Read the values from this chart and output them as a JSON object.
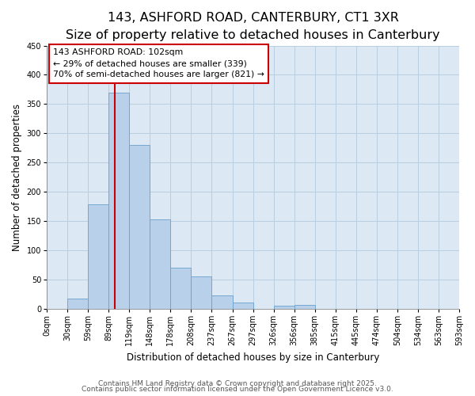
{
  "title": "143, ASHFORD ROAD, CANTERBURY, CT1 3XR",
  "subtitle": "Size of property relative to detached houses in Canterbury",
  "xlabel": "Distribution of detached houses by size in Canterbury",
  "ylabel": "Number of detached properties",
  "bar_values": [
    0,
    18,
    178,
    370,
    280,
    153,
    70,
    55,
    23,
    10,
    0,
    5,
    7,
    0,
    0,
    0,
    0,
    0,
    0,
    0
  ],
  "bar_labels": [
    "0sqm",
    "30sqm",
    "59sqm",
    "89sqm",
    "119sqm",
    "148sqm",
    "178sqm",
    "208sqm",
    "237sqm",
    "267sqm",
    "297sqm",
    "326sqm",
    "356sqm",
    "385sqm",
    "415sqm",
    "445sqm",
    "474sqm",
    "504sqm",
    "534sqm",
    "563sqm",
    "593sqm"
  ],
  "bar_color": "#b8d0ea",
  "bar_edge_color": "#6aa0cc",
  "vline_x": 3.29,
  "vline_color": "#cc0000",
  "annotation_box_text": "143 ASHFORD ROAD: 102sqm\n← 29% of detached houses are smaller (339)\n70% of semi-detached houses are larger (821) →",
  "annotation_box_color": "#ffffff",
  "annotation_box_edge_color": "#cc0000",
  "ylim": [
    0,
    450
  ],
  "yticks": [
    0,
    50,
    100,
    150,
    200,
    250,
    300,
    350,
    400,
    450
  ],
  "background_color": "#ffffff",
  "plot_bg_color": "#dce9f5",
  "grid_color": "#b8cfe0",
  "footer1": "Contains HM Land Registry data © Crown copyright and database right 2025.",
  "footer2": "Contains public sector information licensed under the Open Government Licence v3.0.",
  "title_fontsize": 11.5,
  "subtitle_fontsize": 9,
  "xlabel_fontsize": 8.5,
  "ylabel_fontsize": 8.5,
  "tick_fontsize": 7,
  "footer_fontsize": 6.5,
  "annot_fontsize": 7.8
}
